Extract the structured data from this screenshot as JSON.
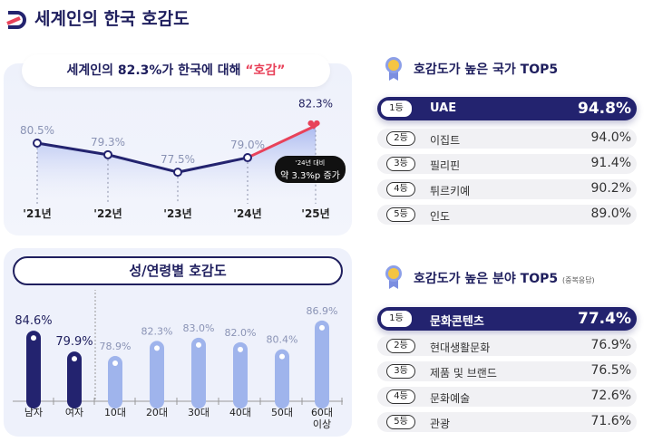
{
  "header": {
    "title": "세계인의 한국 호감도"
  },
  "line_panel": {
    "headline_pre": "세계인의 82.3%가 한국에 대해 ",
    "headline_hl": "“호감”",
    "callout_small": "'24년 대비",
    "callout_main": "약 3.3%p 증가"
  },
  "bar_panel": {
    "title": "성/연령별 호감도"
  },
  "countries": {
    "title": "호감도가 높은 국가 TOP5",
    "items": [
      {
        "rank": "1등",
        "name": "UAE",
        "value": "94.8%"
      },
      {
        "rank": "2등",
        "name": "이집트",
        "value": "94.0%"
      },
      {
        "rank": "3등",
        "name": "필리핀",
        "value": "91.4%"
      },
      {
        "rank": "4등",
        "name": "튀르키예",
        "value": "90.2%"
      },
      {
        "rank": "5등",
        "name": "인도",
        "value": "89.0%"
      }
    ]
  },
  "fields": {
    "title": "호감도가 높은 분야 TOP5",
    "note": "(중복응답)",
    "items": [
      {
        "rank": "1등",
        "name": "문화콘텐츠",
        "value": "77.4%"
      },
      {
        "rank": "2등",
        "name": "현대생활문화",
        "value": "76.9%"
      },
      {
        "rank": "3등",
        "name": "제품 및 브랜드",
        "value": "76.5%"
      },
      {
        "rank": "4등",
        "name": "문화예술",
        "value": "72.6%"
      },
      {
        "rank": "5등",
        "name": "관광",
        "value": "71.6%"
      }
    ]
  },
  "chart_data": [
    {
      "type": "line",
      "categories": [
        "'21년",
        "'22년",
        "'23년",
        "'24년",
        "'25년"
      ],
      "values": [
        80.5,
        79.3,
        77.5,
        79.0,
        82.3
      ],
      "unit": "%",
      "colors": {
        "line": "#23236f",
        "highlight": "#e8425a"
      }
    },
    {
      "type": "bar",
      "categories": [
        "남자",
        "여자",
        "10대",
        "20대",
        "30대",
        "40대",
        "50대",
        "60대 이상"
      ],
      "values": [
        84.6,
        79.9,
        78.9,
        82.3,
        83.0,
        82.0,
        80.4,
        86.9
      ],
      "unit": "%",
      "colors": {
        "gender": "#23236f",
        "age": "#9fb4ec"
      }
    }
  ]
}
